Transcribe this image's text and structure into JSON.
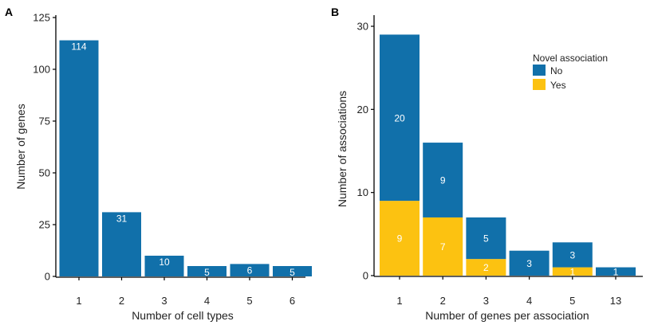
{
  "colors": {
    "no": "#1170aa",
    "yes": "#fcc211",
    "axis": "#000000"
  },
  "chart_data": [
    {
      "panel": "A",
      "type": "bar",
      "categories": [
        "1",
        "2",
        "3",
        "4",
        "5",
        "6"
      ],
      "values": [
        114,
        31,
        10,
        5,
        6,
        5
      ],
      "data_labels": [
        "114",
        "31",
        "10",
        "5",
        "6",
        "5"
      ],
      "xlabel": "Number of cell types",
      "ylabel": "Number of genes",
      "ylim": [
        0,
        125
      ],
      "yticks": [
        "0",
        "25",
        "50",
        "75",
        "100",
        "125"
      ],
      "grid": false
    },
    {
      "panel": "B",
      "type": "bar",
      "stacked": true,
      "categories": [
        "1",
        "2",
        "3",
        "4",
        "5",
        "13"
      ],
      "series": [
        {
          "name": "Yes",
          "color": "#fcc211",
          "values": [
            9,
            7,
            2,
            0,
            1,
            0
          ],
          "labels": [
            "9",
            "7",
            "2",
            "",
            "1",
            ""
          ]
        },
        {
          "name": "No",
          "color": "#1170aa",
          "values": [
            20,
            9,
            5,
            3,
            3,
            1
          ],
          "labels": [
            "20",
            "9",
            "5",
            "3",
            "3",
            "1"
          ]
        }
      ],
      "xlabel": "Number of genes per association",
      "ylabel": "Number of associations",
      "ylim": [
        0,
        30
      ],
      "yticks": [
        "0",
        "10",
        "20",
        "30"
      ],
      "legend": {
        "title": "Novel association",
        "entries": [
          "No",
          "Yes"
        ],
        "placement": "top-right"
      },
      "grid": false
    }
  ]
}
